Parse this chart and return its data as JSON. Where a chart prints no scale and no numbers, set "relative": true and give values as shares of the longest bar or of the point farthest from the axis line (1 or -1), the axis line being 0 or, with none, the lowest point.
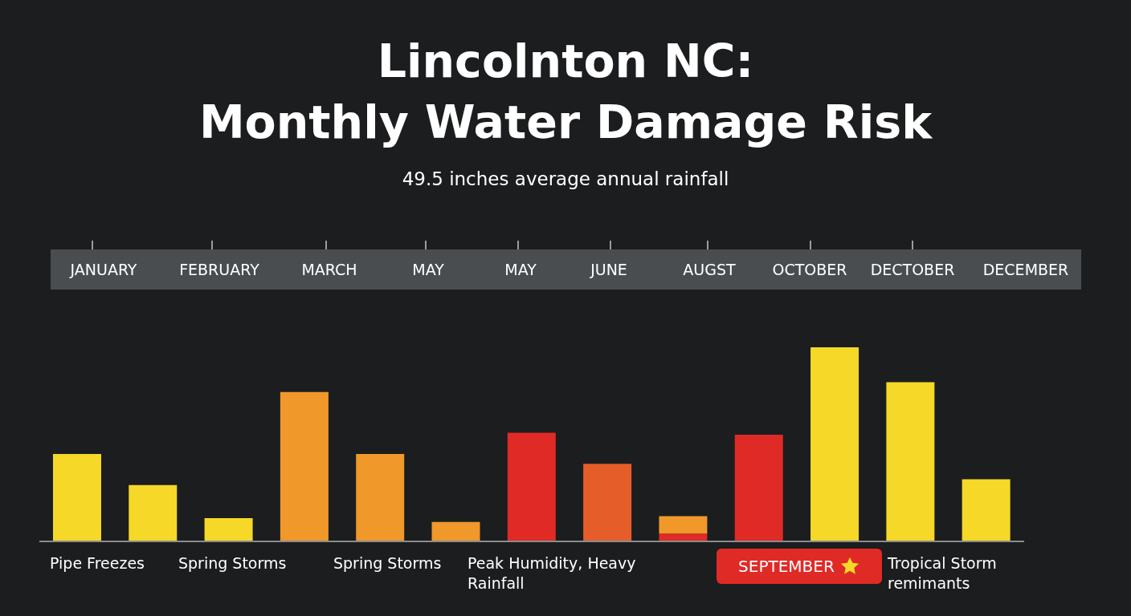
{
  "chart_data": {
    "type": "bar",
    "title": "Lincolnton NC:\nMonthly Water Damage Risk",
    "subtitle": "49.5 inches average annual rainfall",
    "categories": [
      null,
      null,
      null,
      null,
      null,
      null,
      null,
      null,
      null,
      null,
      null,
      null,
      null
    ],
    "relative": true,
    "stacked": true,
    "grid": false,
    "series": [
      {
        "colors": [
          "#f5d828",
          "#f5d828",
          "#f5d828",
          "#f0982a",
          "#f0982a",
          "#f0982a",
          "#e02a26",
          "#e55e2a",
          "#e02a26",
          "#e02a26",
          "#f5d828",
          "#f5d828",
          "#f5d828"
        ],
        "values": [
          0.45,
          0.29,
          0.12,
          0.77,
          0.45,
          0.1,
          0.56,
          0.4,
          0.04,
          0.55,
          1,
          0.82,
          0.32
        ]
      },
      {
        "color": "#f0982a",
        "values": [
          null,
          null,
          null,
          null,
          null,
          null,
          null,
          null,
          0.09,
          null,
          null,
          null,
          null
        ]
      }
    ],
    "annotations": [
      "JANUARY",
      "FEBRUARY",
      "MARCH",
      "MAY",
      "MAY",
      "JUNE",
      "AUGST",
      "OCTOBER",
      "DECTOBER",
      "DECEMBER",
      "Pipe Freezes",
      "Spring Storms",
      "Spring Storms",
      "Peak Humidity, Heavy Rainfall",
      "SEPTEMBER",
      "Tropical Storm remimants"
    ]
  }
}
